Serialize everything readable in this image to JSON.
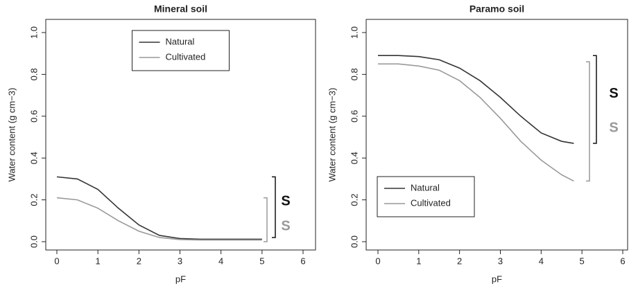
{
  "chart_data": [
    {
      "type": "line",
      "title": "Mineral soil",
      "xlabel": "pF",
      "ylabel": "Water content (g cm−3)",
      "x": [
        0,
        0.5,
        1,
        1.5,
        2,
        2.5,
        3,
        3.5,
        4,
        4.5,
        5
      ],
      "series": [
        {
          "name": "Natural",
          "color": "#333333",
          "values": [
            0.31,
            0.3,
            0.25,
            0.16,
            0.08,
            0.03,
            0.015,
            0.012,
            0.012,
            0.012,
            0.012
          ]
        },
        {
          "name": "Cultivated",
          "color": "#999999",
          "values": [
            0.21,
            0.2,
            0.16,
            0.1,
            0.05,
            0.02,
            0.01,
            0.008,
            0.008,
            0.008,
            0.008
          ]
        }
      ],
      "xlim": [
        0,
        6
      ],
      "xticks": [
        0,
        1,
        2,
        3,
        4,
        5,
        6
      ],
      "ylim": [
        0,
        1
      ],
      "yticks": [
        {
          "value": 0,
          "label": "0.0"
        },
        0.2,
        0.4,
        0.6,
        0.8,
        {
          "value": 1,
          "label": "1.0"
        }
      ],
      "legend": "top",
      "annotations": [
        {
          "text": "S",
          "color": "#111111",
          "range": [
            0.02,
            0.31
          ]
        },
        {
          "text": "S",
          "color": "#999999",
          "range": [
            0.0,
            0.21
          ]
        }
      ]
    },
    {
      "type": "line",
      "title": "Paramo soil",
      "xlabel": "pF",
      "ylabel": "Water content (g cm−3)",
      "x": [
        0,
        0.5,
        1,
        1.5,
        2,
        2.5,
        3,
        3.5,
        4,
        4.5,
        4.8
      ],
      "series": [
        {
          "name": "Natural",
          "color": "#333333",
          "values": [
            0.89,
            0.89,
            0.885,
            0.87,
            0.83,
            0.77,
            0.69,
            0.6,
            0.52,
            0.48,
            0.47
          ]
        },
        {
          "name": "Cultivated",
          "color": "#999999",
          "values": [
            0.85,
            0.85,
            0.84,
            0.82,
            0.77,
            0.69,
            0.59,
            0.48,
            0.39,
            0.32,
            0.29
          ]
        }
      ],
      "xlim": [
        0,
        6
      ],
      "xticks": [
        0,
        1,
        2,
        3,
        4,
        5,
        6
      ],
      "ylim": [
        0,
        1
      ],
      "yticks": [
        {
          "value": 0,
          "label": "0.0"
        },
        0.2,
        0.4,
        0.6,
        0.8,
        {
          "value": 1,
          "label": "1.0"
        }
      ],
      "legend": "bottom-left",
      "annotations": [
        {
          "text": "S",
          "color": "#111111",
          "range": [
            0.47,
            0.89
          ]
        },
        {
          "text": "S",
          "color": "#999999",
          "range": [
            0.29,
            0.86
          ]
        }
      ]
    }
  ]
}
